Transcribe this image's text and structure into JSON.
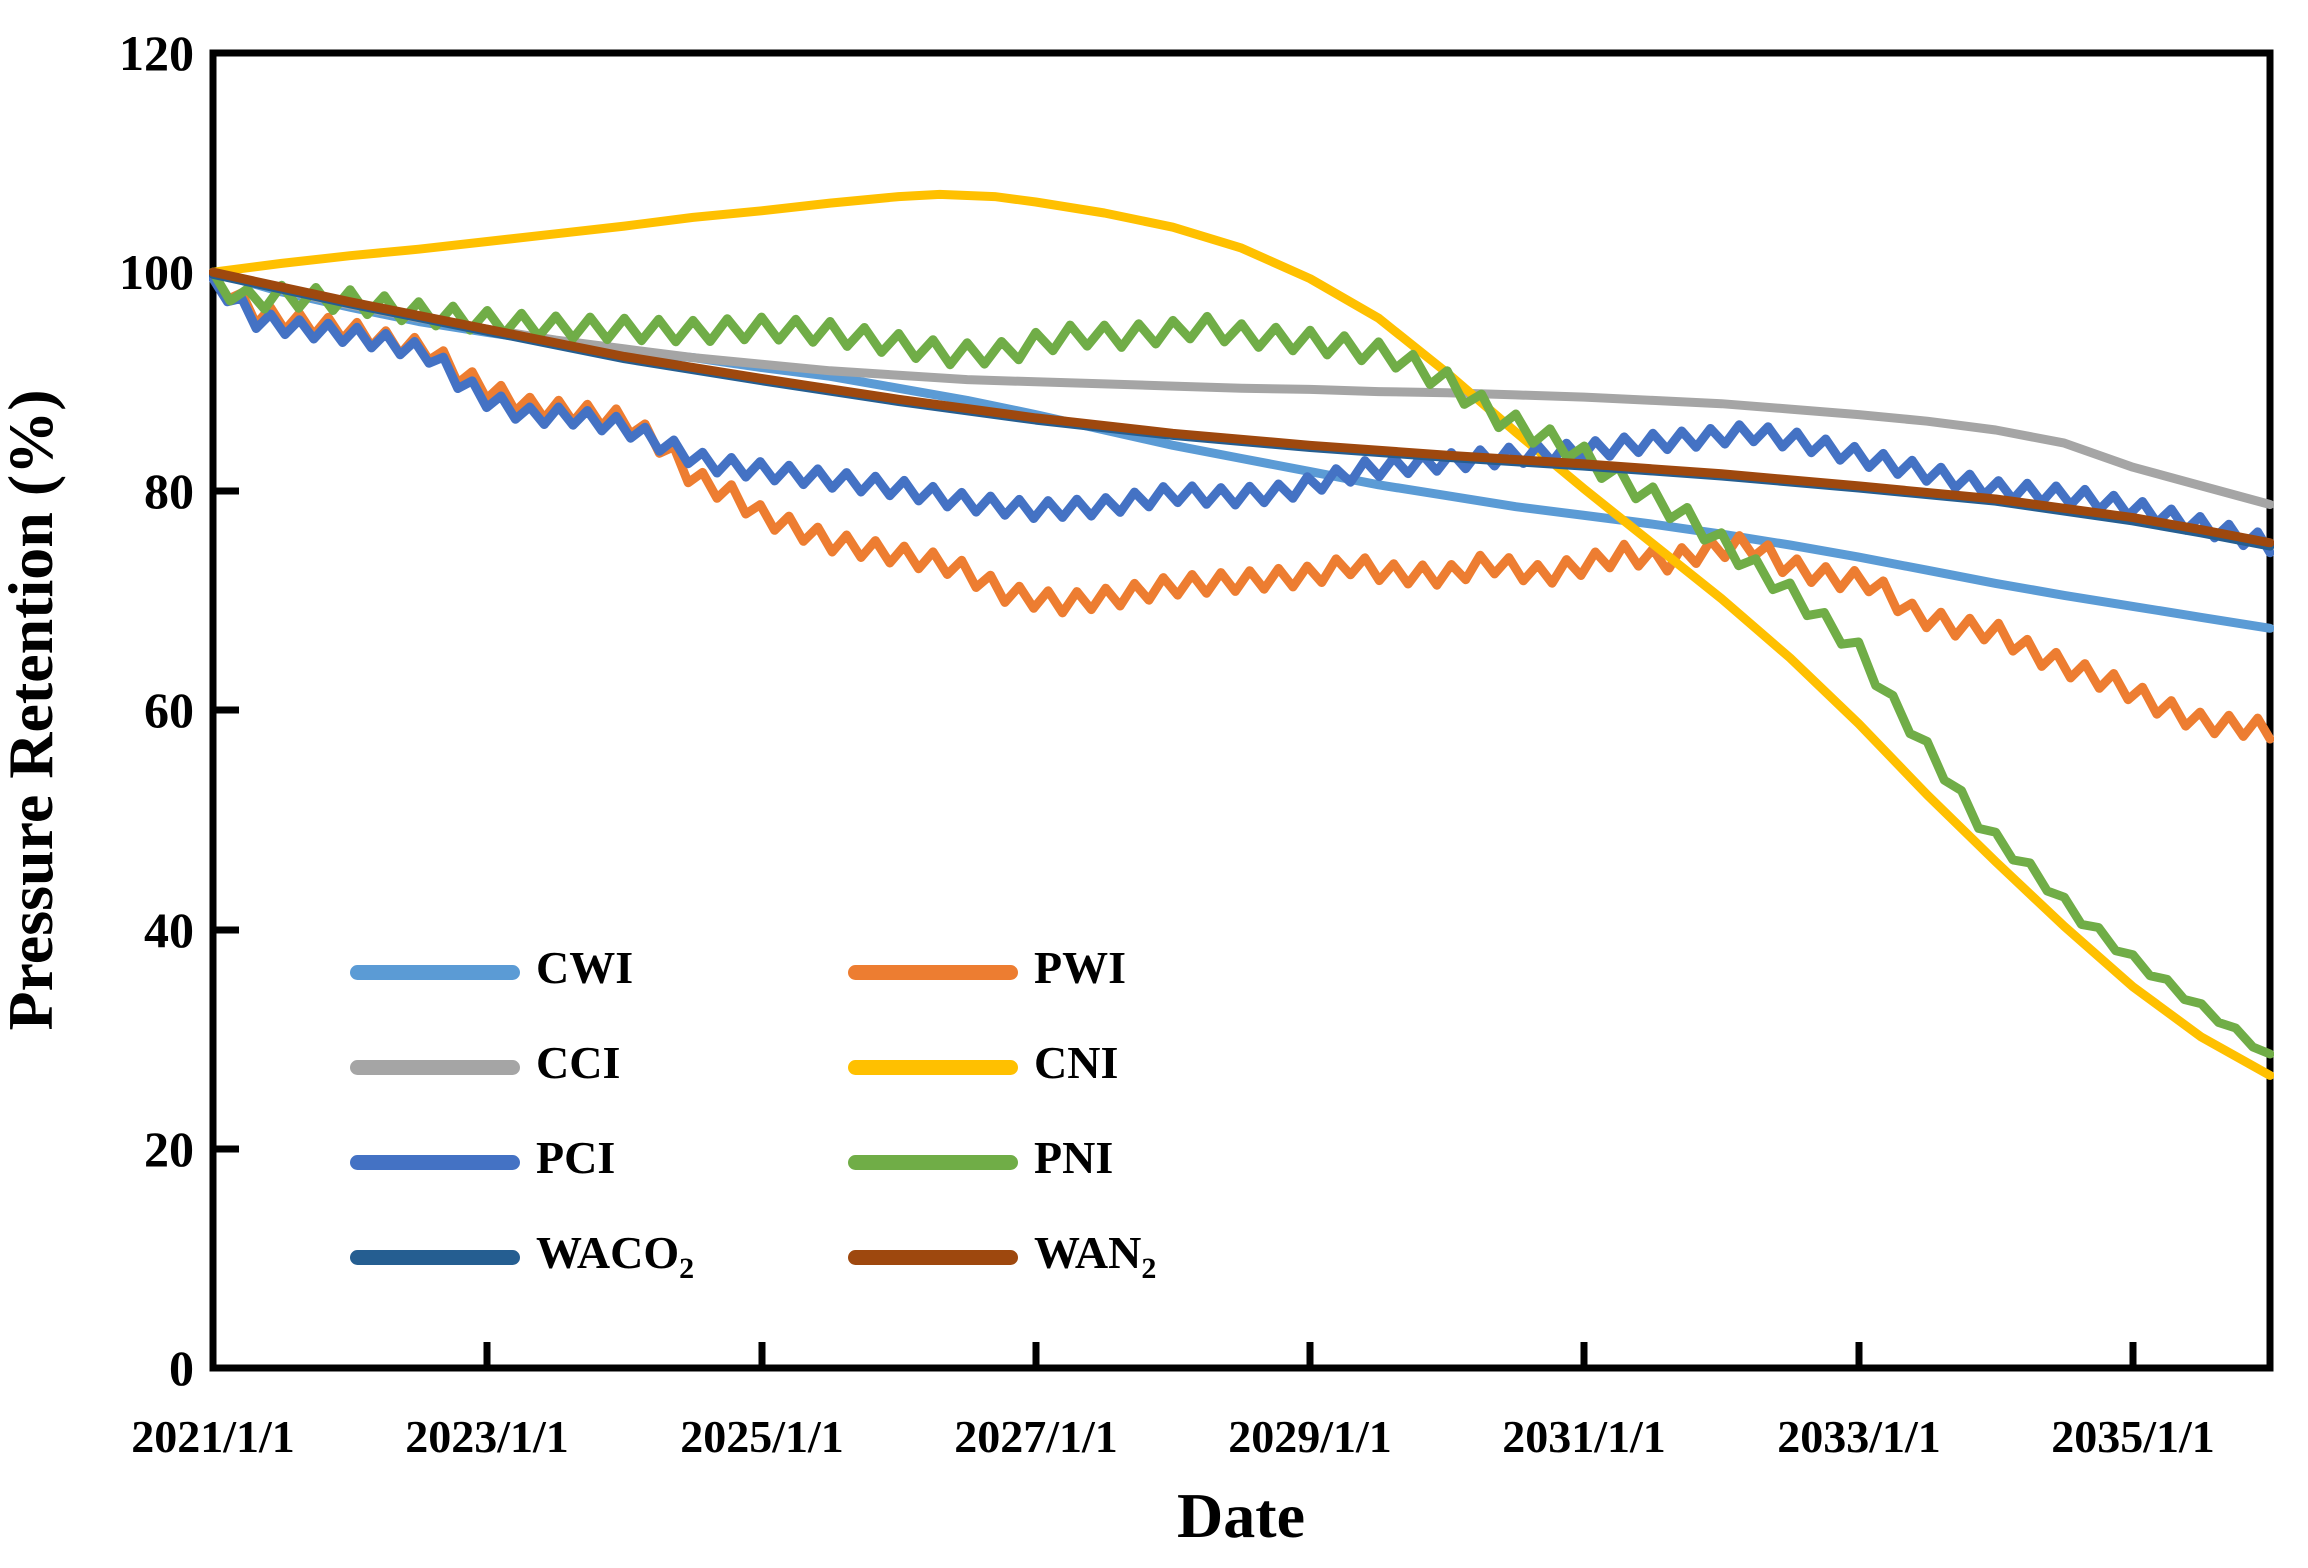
{
  "axes": {
    "x": {
      "title": "Date",
      "tick_labels": [
        "2021/1/1",
        "2023/1/1",
        "2025/1/1",
        "2027/1/1",
        "2029/1/1",
        "2031/1/1",
        "2033/1/1",
        "2035/1/1"
      ]
    },
    "y": {
      "title": "Pressure Retention (%)",
      "tick_labels": [
        "0",
        "20",
        "40",
        "60",
        "80",
        "100",
        "120"
      ]
    }
  },
  "chart_data": {
    "type": "line",
    "title": "",
    "xlabel": "Date",
    "ylabel": "Pressure Retention (%)",
    "x_unit": "decimal_year",
    "xlim": [
      2021,
      2036
    ],
    "ylim": [
      0,
      120
    ],
    "x_tick_labels": [
      "2021/1/1",
      "2023/1/1",
      "2025/1/1",
      "2027/1/1",
      "2029/1/1",
      "2031/1/1",
      "2033/1/1",
      "2035/1/1"
    ],
    "y_ticks": [
      0,
      20,
      40,
      60,
      80,
      100,
      120
    ],
    "grid": false,
    "legend_position": "inside-lower-left",
    "series": [
      {
        "name": "CWI",
        "label_main": "CWI",
        "label_sub": "",
        "color": "#5B9BD5",
        "style": "smooth",
        "zigzag_amplitude": 0,
        "zigzag_period": 0,
        "points": [
          [
            2021,
            100
          ],
          [
            2021.5,
            98.2
          ],
          [
            2022,
            96.8
          ],
          [
            2022.5,
            95.5
          ],
          [
            2023,
            94.5
          ],
          [
            2023.5,
            93.6
          ],
          [
            2024,
            92.8
          ],
          [
            2024.5,
            92.2
          ],
          [
            2025,
            91.3
          ],
          [
            2025.5,
            90.5
          ],
          [
            2026,
            89.4
          ],
          [
            2026.5,
            88.3
          ],
          [
            2027,
            87.0
          ],
          [
            2027.5,
            85.6
          ],
          [
            2028,
            84.2
          ],
          [
            2028.5,
            83.0
          ],
          [
            2029,
            81.8
          ],
          [
            2029.5,
            80.6
          ],
          [
            2030,
            79.6
          ],
          [
            2030.5,
            78.6
          ],
          [
            2031,
            77.8
          ],
          [
            2031.5,
            77.0
          ],
          [
            2032,
            76.1
          ],
          [
            2032.5,
            75.1
          ],
          [
            2033,
            74.0
          ],
          [
            2033.5,
            72.8
          ],
          [
            2034,
            71.6
          ],
          [
            2034.5,
            70.5
          ],
          [
            2035,
            69.5
          ],
          [
            2035.5,
            68.5
          ],
          [
            2036,
            67.5
          ]
        ]
      },
      {
        "name": "PWI",
        "label_main": "PWI",
        "label_sub": "",
        "color": "#ED7D31",
        "style": "zigzag",
        "zigzag_amplitude": 0.9,
        "zigzag_period": 0.21,
        "points": [
          [
            2021,
            99.6
          ],
          [
            2021.3,
            96.2
          ],
          [
            2021.6,
            95.4
          ],
          [
            2022,
            94.7
          ],
          [
            2022.3,
            93.6
          ],
          [
            2022.6,
            92.8
          ],
          [
            2022.8,
            90.6
          ],
          [
            2023,
            89.3
          ],
          [
            2023.3,
            87.7
          ],
          [
            2023.6,
            87.3
          ],
          [
            2024,
            86.5
          ],
          [
            2024.3,
            84.0
          ],
          [
            2024.5,
            81.2
          ],
          [
            2024.8,
            79.6
          ],
          [
            2025,
            77.8
          ],
          [
            2025.5,
            75.4
          ],
          [
            2026,
            74.2
          ],
          [
            2026.4,
            73.2
          ],
          [
            2026.8,
            70.6
          ],
          [
            2027.2,
            69.8
          ],
          [
            2027.6,
            70.4
          ],
          [
            2028,
            71.4
          ],
          [
            2028.5,
            71.8
          ],
          [
            2029,
            72.3
          ],
          [
            2029.3,
            73.3
          ],
          [
            2029.6,
            72.5
          ],
          [
            2030,
            72.3
          ],
          [
            2030.3,
            73.5
          ],
          [
            2030.7,
            72.3
          ],
          [
            2031,
            73.3
          ],
          [
            2031.3,
            74.3
          ],
          [
            2031.6,
            73.6
          ],
          [
            2031.9,
            74.6
          ],
          [
            2032.2,
            75.2
          ],
          [
            2032.5,
            73.1
          ],
          [
            2032.8,
            72.1
          ],
          [
            2033.1,
            71.7
          ],
          [
            2033.4,
            68.8
          ],
          [
            2033.7,
            67.7
          ],
          [
            2034,
            67.2
          ],
          [
            2034.3,
            65.1
          ],
          [
            2034.6,
            63.6
          ],
          [
            2034.9,
            62.3
          ],
          [
            2035.2,
            60.4
          ],
          [
            2035.5,
            58.9
          ],
          [
            2036,
            58.3
          ]
        ]
      },
      {
        "name": "CCI",
        "label_main": "CCI",
        "label_sub": "",
        "color": "#A5A5A5",
        "style": "smooth",
        "zigzag_amplitude": 0,
        "zigzag_period": 0,
        "points": [
          [
            2021,
            100
          ],
          [
            2021.5,
            98.4
          ],
          [
            2022,
            97.0
          ],
          [
            2022.5,
            95.8
          ],
          [
            2023,
            94.8
          ],
          [
            2023.5,
            93.8
          ],
          [
            2024,
            93.0
          ],
          [
            2024.5,
            92.2
          ],
          [
            2025,
            91.6
          ],
          [
            2025.5,
            91.0
          ],
          [
            2026,
            90.6
          ],
          [
            2026.5,
            90.2
          ],
          [
            2027,
            90.0
          ],
          [
            2027.5,
            89.8
          ],
          [
            2028,
            89.6
          ],
          [
            2028.5,
            89.4
          ],
          [
            2029,
            89.3
          ],
          [
            2029.5,
            89.1
          ],
          [
            2030,
            89.0
          ],
          [
            2030.5,
            88.8
          ],
          [
            2031,
            88.6
          ],
          [
            2031.5,
            88.3
          ],
          [
            2032,
            88.0
          ],
          [
            2032.5,
            87.5
          ],
          [
            2033,
            87.0
          ],
          [
            2033.5,
            86.4
          ],
          [
            2034,
            85.6
          ],
          [
            2034.5,
            84.4
          ],
          [
            2035,
            82.2
          ],
          [
            2035.5,
            80.5
          ],
          [
            2036,
            78.8
          ]
        ]
      },
      {
        "name": "CNI",
        "label_main": "CNI",
        "label_sub": "",
        "color": "#FFC000",
        "style": "smooth",
        "zigzag_amplitude": 0,
        "zigzag_period": 0,
        "points": [
          [
            2021,
            100
          ],
          [
            2021.5,
            100.8
          ],
          [
            2022,
            101.5
          ],
          [
            2022.5,
            102.1
          ],
          [
            2023,
            102.8
          ],
          [
            2023.5,
            103.5
          ],
          [
            2024,
            104.2
          ],
          [
            2024.5,
            105.0
          ],
          [
            2025,
            105.6
          ],
          [
            2025.5,
            106.3
          ],
          [
            2026,
            106.9
          ],
          [
            2026.3,
            107.1
          ],
          [
            2026.7,
            106.9
          ],
          [
            2027,
            106.4
          ],
          [
            2027.5,
            105.4
          ],
          [
            2028,
            104.1
          ],
          [
            2028.5,
            102.2
          ],
          [
            2029,
            99.4
          ],
          [
            2029.5,
            95.8
          ],
          [
            2030,
            90.8
          ],
          [
            2030.5,
            85.4
          ],
          [
            2031,
            80.2
          ],
          [
            2031.5,
            75.2
          ],
          [
            2032,
            70.2
          ],
          [
            2032.5,
            64.8
          ],
          [
            2033,
            58.8
          ],
          [
            2033.5,
            52.3
          ],
          [
            2034,
            46.2
          ],
          [
            2034.5,
            40.3
          ],
          [
            2035,
            34.8
          ],
          [
            2035.5,
            30.2
          ],
          [
            2036,
            26.7
          ]
        ]
      },
      {
        "name": "PCI",
        "label_main": "PCI",
        "label_sub": "",
        "color": "#4472C4",
        "style": "zigzag",
        "zigzag_amplitude": 0.8,
        "zigzag_period": 0.21,
        "points": [
          [
            2021,
            99.4
          ],
          [
            2021.3,
            95.7
          ],
          [
            2021.6,
            94.9
          ],
          [
            2022,
            94.3
          ],
          [
            2022.3,
            93.5
          ],
          [
            2022.6,
            92.4
          ],
          [
            2022.8,
            90.0
          ],
          [
            2023,
            88.4
          ],
          [
            2023.3,
            86.9
          ],
          [
            2023.6,
            86.9
          ],
          [
            2024,
            85.9
          ],
          [
            2024.3,
            84.2
          ],
          [
            2024.6,
            82.6
          ],
          [
            2025,
            81.9
          ],
          [
            2025.5,
            81.1
          ],
          [
            2026,
            80.3
          ],
          [
            2026.5,
            79.0
          ],
          [
            2027,
            78.3
          ],
          [
            2027.5,
            78.6
          ],
          [
            2028,
            79.8
          ],
          [
            2028.4,
            79.5
          ],
          [
            2028.8,
            79.9
          ],
          [
            2029,
            80.6
          ],
          [
            2029.4,
            82.0
          ],
          [
            2029.7,
            82.4
          ],
          [
            2030,
            82.7
          ],
          [
            2030.5,
            83.3
          ],
          [
            2031,
            83.7
          ],
          [
            2031.5,
            84.5
          ],
          [
            2031.9,
            84.9
          ],
          [
            2032.2,
            85.4
          ],
          [
            2032.6,
            84.5
          ],
          [
            2033,
            83.2
          ],
          [
            2033.5,
            81.7
          ],
          [
            2034,
            80.2
          ],
          [
            2034.6,
            79.5
          ],
          [
            2035,
            78.5
          ],
          [
            2035.4,
            77.2
          ],
          [
            2035.7,
            76.2
          ],
          [
            2036,
            75.2
          ]
        ]
      },
      {
        "name": "PNI",
        "label_main": "PNI",
        "label_sub": "",
        "color": "#70AD47",
        "style": "zigzag",
        "zigzag_amplitude": 1.0,
        "zigzag_period": 0.25,
        "zigzag_fade_from": 2031.5,
        "zigzag_end_amplitude": 0.25,
        "points": [
          [
            2021,
            100
          ],
          [
            2021.2,
            97.4
          ],
          [
            2021.5,
            97.8
          ],
          [
            2022,
            97.4
          ],
          [
            2022.5,
            96.3
          ],
          [
            2023,
            95.5
          ],
          [
            2023.5,
            95.0
          ],
          [
            2024,
            94.8
          ],
          [
            2024.5,
            94.6
          ],
          [
            2025,
            94.9
          ],
          [
            2025.5,
            94.5
          ],
          [
            2026,
            93.4
          ],
          [
            2026.4,
            92.5
          ],
          [
            2026.8,
            92.7
          ],
          [
            2027,
            93.5
          ],
          [
            2027.3,
            94.3
          ],
          [
            2027.6,
            94.1
          ],
          [
            2028,
            94.6
          ],
          [
            2028.2,
            95.1
          ],
          [
            2028.5,
            94.3
          ],
          [
            2028.8,
            93.9
          ],
          [
            2029,
            93.7
          ],
          [
            2029.3,
            93.1
          ],
          [
            2029.6,
            92.4
          ],
          [
            2030,
            90.0
          ],
          [
            2030.4,
            86.6
          ],
          [
            2030.9,
            83.9
          ],
          [
            2031.2,
            81.6
          ],
          [
            2031.5,
            79.4
          ],
          [
            2031.8,
            77.2
          ],
          [
            2032.2,
            73.4
          ],
          [
            2032.5,
            70.8
          ],
          [
            2033,
            65.5
          ],
          [
            2033.2,
            61.5
          ],
          [
            2033.5,
            56.5
          ],
          [
            2033.9,
            49.4
          ],
          [
            2034.3,
            45.0
          ],
          [
            2034.6,
            41.2
          ],
          [
            2035,
            37.3
          ],
          [
            2035.35,
            34.2
          ],
          [
            2035.7,
            31.2
          ],
          [
            2036,
            28.4
          ]
        ]
      },
      {
        "name": "WACO₂",
        "label_main": "WACO",
        "label_sub": "2",
        "color": "#255E91",
        "style": "smooth",
        "zigzag_amplitude": 0,
        "zigzag_period": 0,
        "points": [
          [
            2021,
            99.8
          ],
          [
            2022,
            97.1
          ],
          [
            2023,
            94.6
          ],
          [
            2024,
            92.1
          ],
          [
            2025,
            90.1
          ],
          [
            2026,
            88.2
          ],
          [
            2027,
            86.5
          ],
          [
            2028,
            85.1
          ],
          [
            2029,
            84.0
          ],
          [
            2030,
            83.1
          ],
          [
            2031,
            82.3
          ],
          [
            2032,
            81.4
          ],
          [
            2033,
            80.3
          ],
          [
            2034,
            79.1
          ],
          [
            2035,
            77.3
          ],
          [
            2035.5,
            76.2
          ],
          [
            2036,
            75.0
          ]
        ]
      },
      {
        "name": "WAN₂",
        "label_main": "WAN",
        "label_sub": "2",
        "color": "#9E480E",
        "style": "smooth",
        "zigzag_amplitude": 0,
        "zigzag_period": 0,
        "points": [
          [
            2021,
            100
          ],
          [
            2022,
            97.3
          ],
          [
            2023,
            94.8
          ],
          [
            2024,
            92.3
          ],
          [
            2025,
            90.3
          ],
          [
            2026,
            88.4
          ],
          [
            2027,
            86.7
          ],
          [
            2028,
            85.3
          ],
          [
            2029,
            84.2
          ],
          [
            2030,
            83.3
          ],
          [
            2031,
            82.5
          ],
          [
            2032,
            81.6
          ],
          [
            2033,
            80.5
          ],
          [
            2034,
            79.3
          ],
          [
            2035,
            77.6
          ],
          [
            2035.5,
            76.5
          ],
          [
            2036,
            75.3
          ]
        ]
      }
    ]
  }
}
